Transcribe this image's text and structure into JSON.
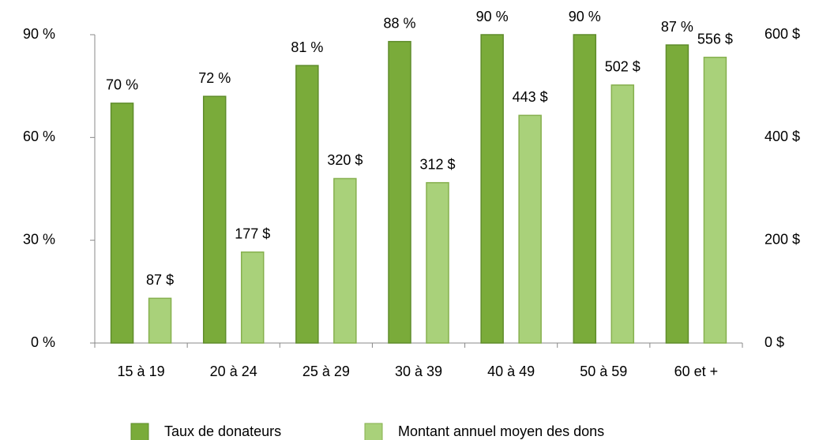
{
  "chart_data": {
    "type": "bar",
    "categories": [
      "15 à 19",
      "20 à 24",
      "25 à 29",
      "30 à 39",
      "40 à 49",
      "50 à 59",
      "60 et +"
    ],
    "series": [
      {
        "name": "Taux de donateurs",
        "color": "#7aab3a",
        "values": [
          70,
          72,
          81,
          88,
          90,
          90,
          87
        ],
        "value_labels": [
          "70 %",
          "72 %",
          "81 %",
          "88 %",
          "90 %",
          "90 %",
          "87 %"
        ]
      },
      {
        "name": "Montant annuel moyen des dons",
        "color": "#a9d17a",
        "axis": "y2",
        "values": [
          87,
          177,
          320,
          312,
          443,
          502,
          556
        ],
        "value_labels": [
          "87 $",
          "177 $",
          "320 $",
          "312 $",
          "443 $",
          "502 $",
          "556 $"
        ]
      }
    ],
    "ylim": [
      0,
      90
    ],
    "yticks": [
      {
        "value": 0,
        "label": "0 %"
      },
      {
        "value": 30,
        "label": "30 %"
      },
      {
        "value": 60,
        "label": "60 %"
      },
      {
        "value": 90,
        "label": "90 %"
      }
    ],
    "y2lim": [
      0,
      600
    ],
    "y2ticks": [
      {
        "value": 0,
        "label": "0 $"
      },
      {
        "value": 200,
        "label": "200 $"
      },
      {
        "value": 400,
        "label": "400 $"
      },
      {
        "value": 600,
        "label": "600 $"
      }
    ],
    "legend": "bottom",
    "grid": false
  }
}
